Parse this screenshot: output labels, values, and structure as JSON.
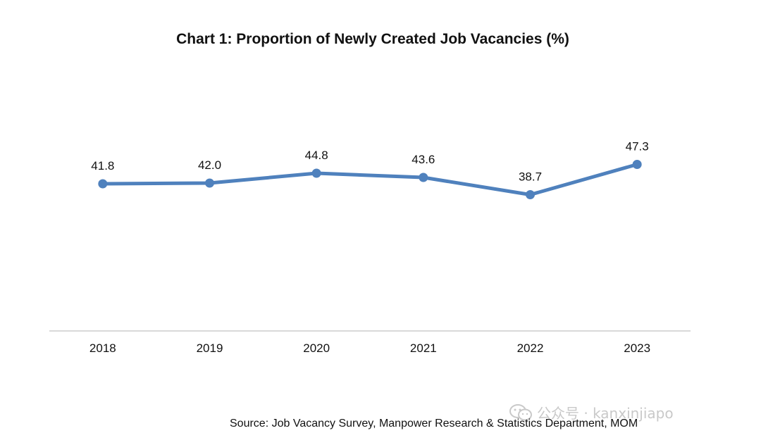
{
  "chart_data": {
    "type": "line",
    "title": "Chart 1: Proportion of Newly Created Job Vacancies (%)",
    "categories": [
      "2018",
      "2019",
      "2020",
      "2021",
      "2022",
      "2023"
    ],
    "series": [
      {
        "values": [
          41.8,
          42.0,
          44.8,
          43.6,
          38.7,
          47.3
        ]
      }
    ],
    "data_labels": [
      "41.8",
      "42.0",
      "44.8",
      "43.6",
      "38.7",
      "47.3"
    ],
    "ylim": [
      0,
      80
    ],
    "y_axis_visible": false,
    "grid": false,
    "legend": "none",
    "line_color": "#4f81bd",
    "axis_color": "#d9d9d9"
  },
  "source_note": "Source: Job Vacancy Survey, Manpower Research & Statistics Department, MOM",
  "watermark": {
    "text": "公众号 · kanxinjiapo",
    "icon": "wechat-logo-icon"
  }
}
